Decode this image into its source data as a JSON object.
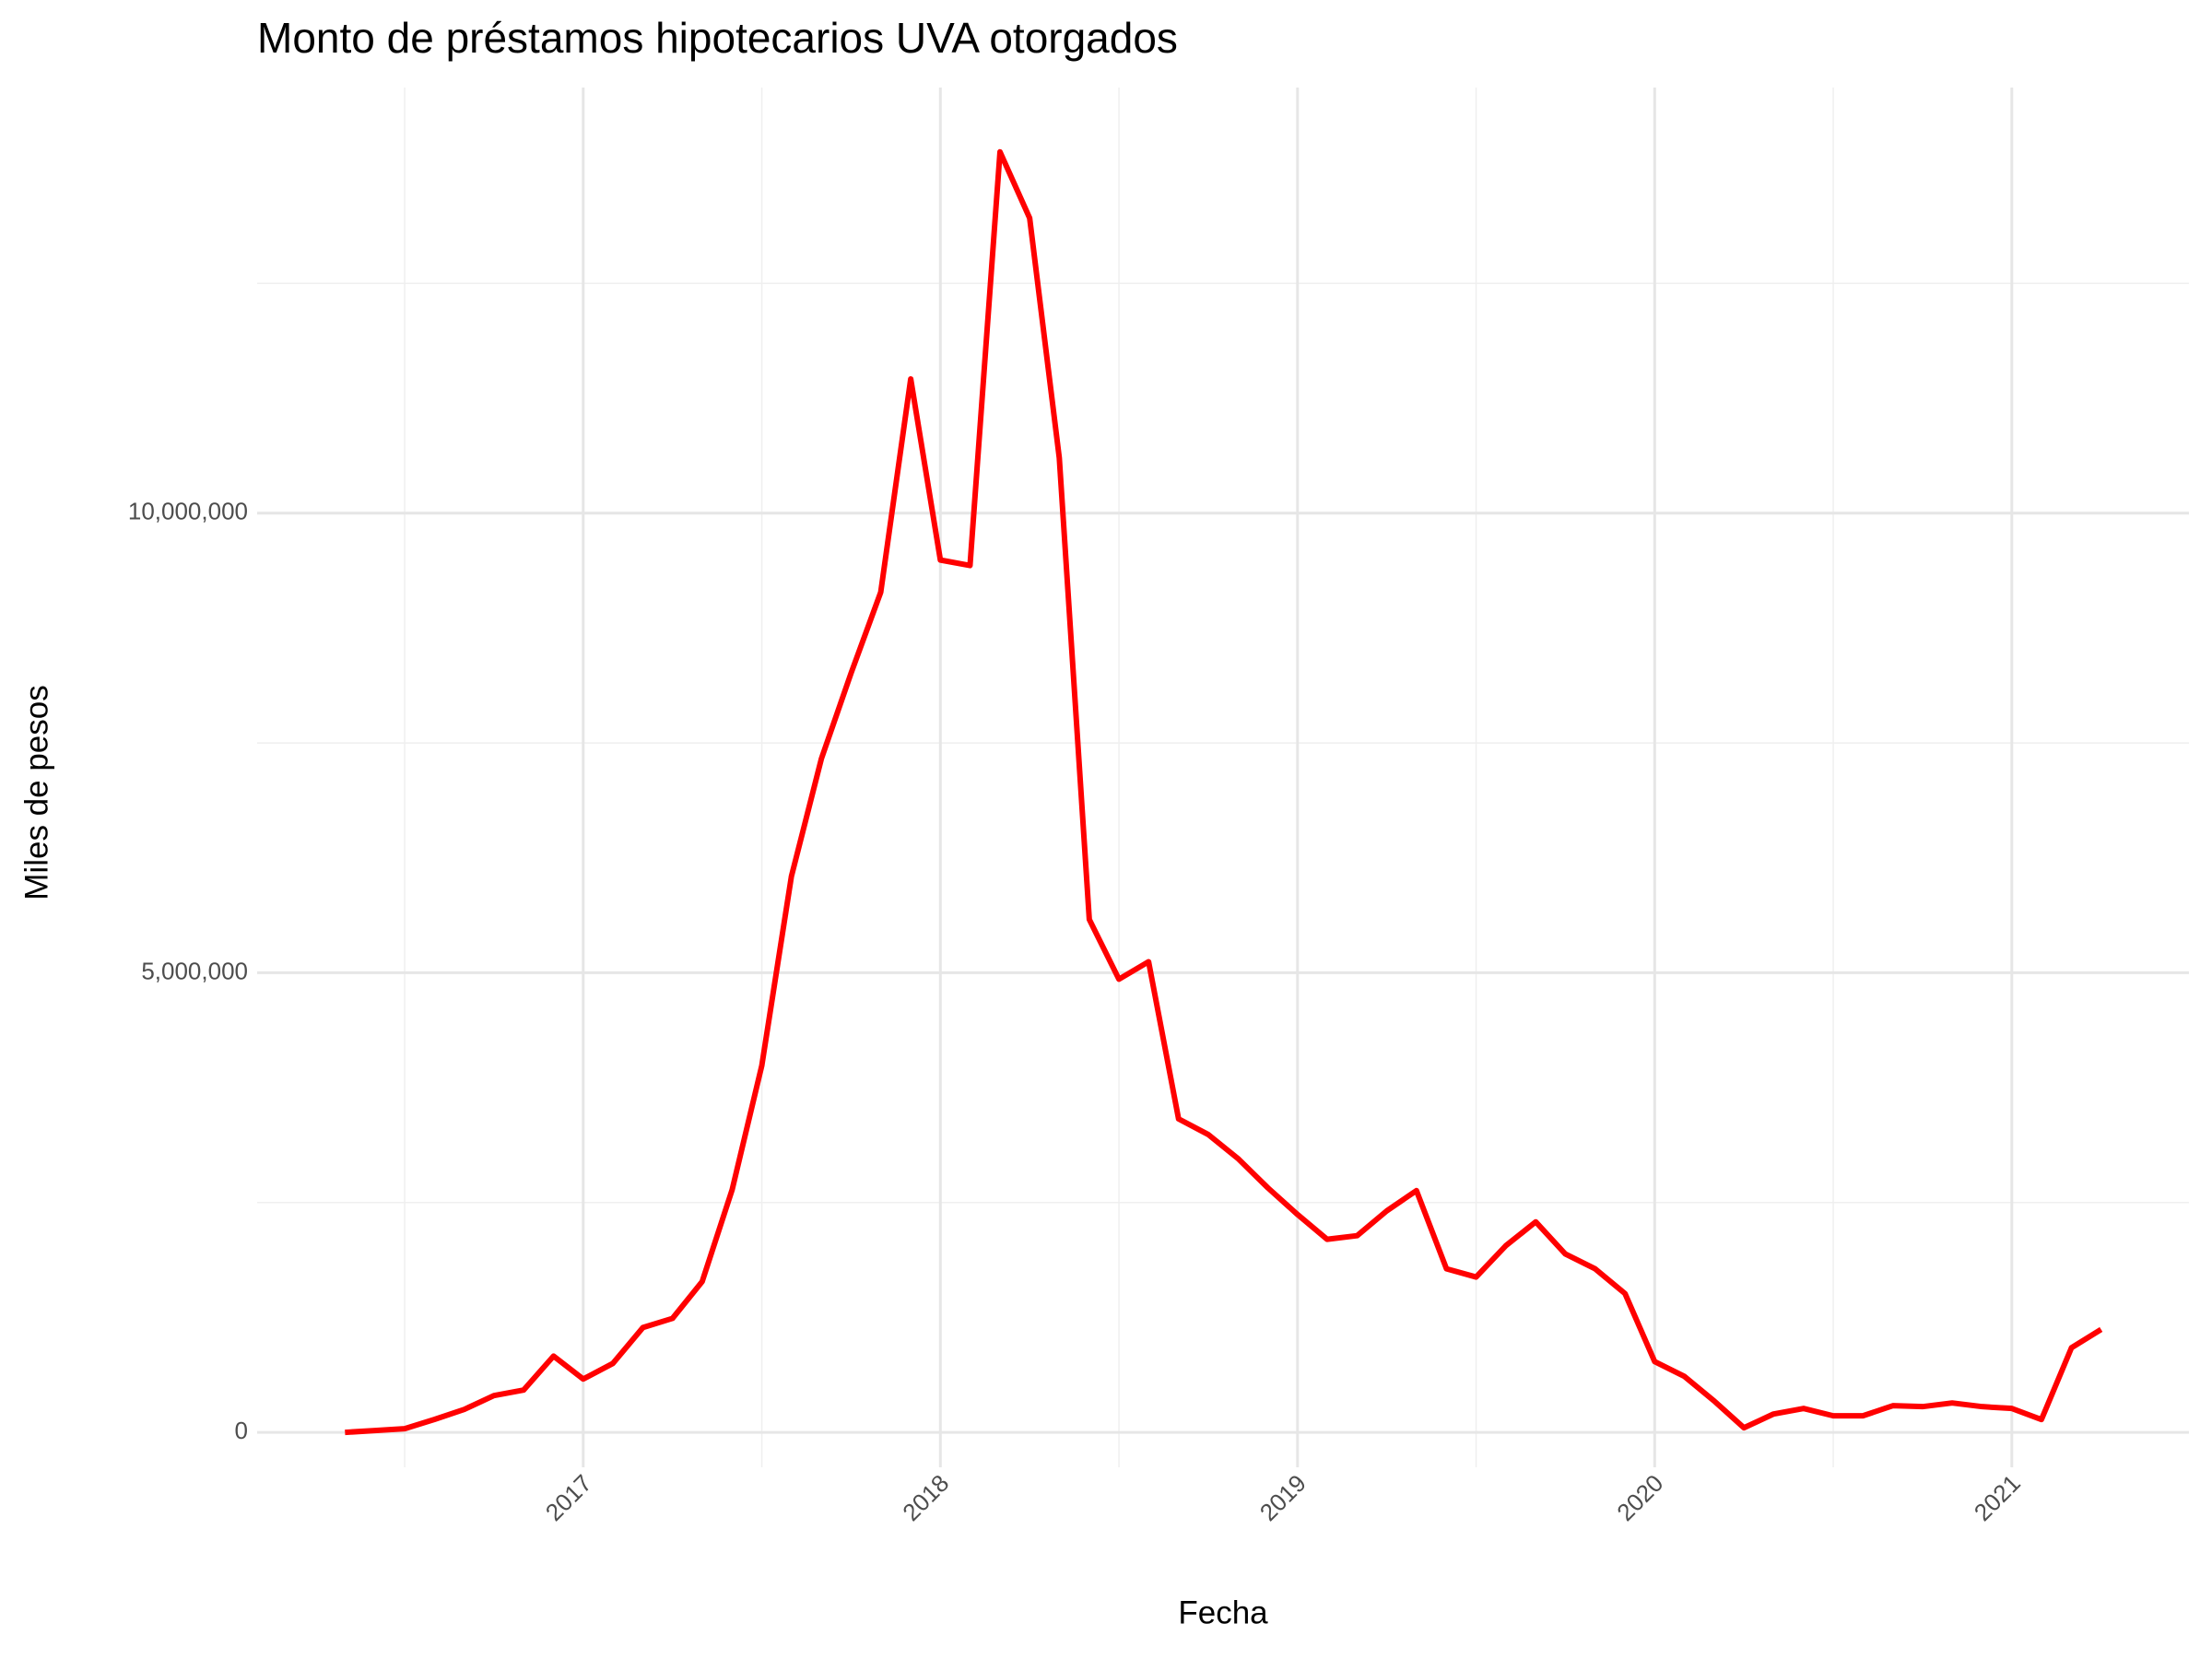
{
  "chart_data": {
    "type": "line",
    "title": "Monto de préstamos hipotecarios UVA otorgados",
    "x_label": "Fecha",
    "y_label": "Miles de pesos",
    "color": "#ff0000",
    "grid": true,
    "x": [
      2016.333,
      2016.417,
      2016.5,
      2016.583,
      2016.667,
      2016.75,
      2016.833,
      2016.917,
      2017,
      2017.083,
      2017.167,
      2017.25,
      2017.333,
      2017.417,
      2017.5,
      2017.583,
      2017.667,
      2017.75,
      2017.833,
      2017.917,
      2018,
      2018.083,
      2018.167,
      2018.25,
      2018.333,
      2018.417,
      2018.5,
      2018.583,
      2018.667,
      2018.75,
      2018.833,
      2018.917,
      2019,
      2019.083,
      2019.167,
      2019.25,
      2019.333,
      2019.417,
      2019.5,
      2019.583,
      2019.667,
      2019.75,
      2019.833,
      2019.917,
      2020,
      2020.083,
      2020.167,
      2020.25,
      2020.333,
      2020.417,
      2020.5,
      2020.583,
      2020.667,
      2020.75,
      2020.833,
      2020.917,
      2021,
      2021.083,
      2021.167,
      2021.25
    ],
    "values": [
      0,
      20000,
      40000,
      140000,
      250000,
      400000,
      460000,
      830000,
      580000,
      750000,
      1140000,
      1240000,
      1640000,
      2640000,
      3990000,
      6050000,
      7330000,
      8260000,
      9140000,
      11460000,
      9490000,
      9430000,
      13930000,
      13210000,
      10600000,
      5580000,
      4930000,
      5120000,
      3410000,
      3240000,
      2980000,
      2660000,
      2370000,
      2100000,
      2140000,
      2410000,
      2630000,
      1780000,
      1690000,
      2030000,
      2290000,
      1940000,
      1780000,
      1510000,
      770000,
      610000,
      340000,
      50000,
      200000,
      260000,
      180000,
      180000,
      290000,
      280000,
      320000,
      280000,
      260000,
      140000,
      920000,
      1120000
    ],
    "xlim": [
      2016.087,
      2021.496
    ],
    "xticks": [
      2017,
      2018,
      2019,
      2020,
      2021
    ],
    "minor_xticks": [
      2016.5,
      2017.5,
      2018.5,
      2019.5,
      2020.5
    ],
    "ylim": [
      -380000,
      14630000
    ],
    "yticks": [
      0,
      {
        "value": 5000000,
        "label": "5,000,000"
      },
      {
        "value": 10000000,
        "label": "10,000,000"
      }
    ],
    "minor_yticks": [
      2500000,
      7500000,
      12500000
    ]
  }
}
